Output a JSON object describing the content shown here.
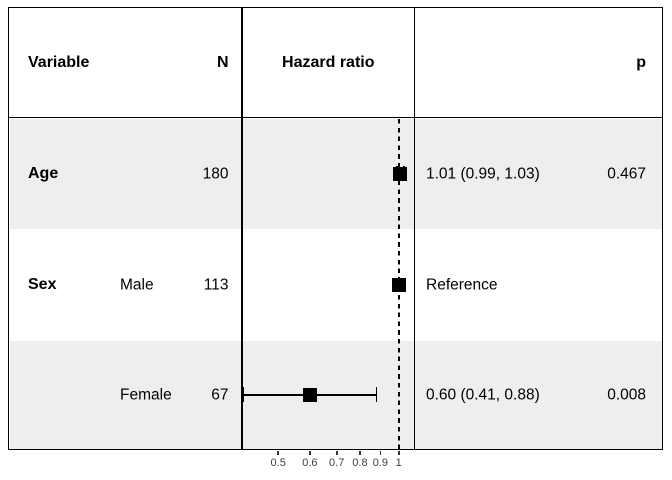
{
  "table": {
    "headers": {
      "variable": "Variable",
      "n": "N",
      "hazard_ratio": "Hazard ratio",
      "p": "p"
    },
    "rows": [
      {
        "variable": "Age",
        "level": "",
        "n": "180",
        "estimate_label": "1.01 (0.99, 1.03)",
        "p": "0.467",
        "shaded": true
      },
      {
        "variable": "Sex",
        "level": "Male",
        "n": "113",
        "estimate_label": "Reference",
        "p": "",
        "shaded": false
      },
      {
        "variable": "",
        "level": "Female",
        "n": "67",
        "estimate_label": "0.60 (0.41, 0.88)",
        "p": "0.008",
        "shaded": true
      }
    ]
  },
  "chart_data": {
    "type": "scatter",
    "variant": "forest",
    "x_scale": "log",
    "xlim": [
      0.406,
      1.095
    ],
    "ticks": [
      0.5,
      0.6,
      0.7,
      0.8,
      0.9,
      1
    ],
    "tick_labels": [
      "0.5",
      "0.6",
      "0.7",
      "0.8",
      "0.9",
      "1"
    ],
    "reference_line": 1,
    "points": [
      {
        "label": "Age",
        "row": 0,
        "hr": 1.01,
        "lo": 0.99,
        "hi": 1.03
      },
      {
        "label": "Sex: Male",
        "row": 1,
        "hr": 1.0,
        "lo": 1.0,
        "hi": 1.0,
        "reference": true
      },
      {
        "label": "Sex: Female",
        "row": 2,
        "hr": 0.6,
        "lo": 0.41,
        "hi": 0.88
      }
    ],
    "title": "",
    "xlabel": "",
    "ylabel": "",
    "grid": false,
    "legend": false
  },
  "colors": {
    "band": "#EEEEEE",
    "border": "#000000",
    "marker": "#000000",
    "text": "#000000",
    "tick_text": "#404040"
  }
}
